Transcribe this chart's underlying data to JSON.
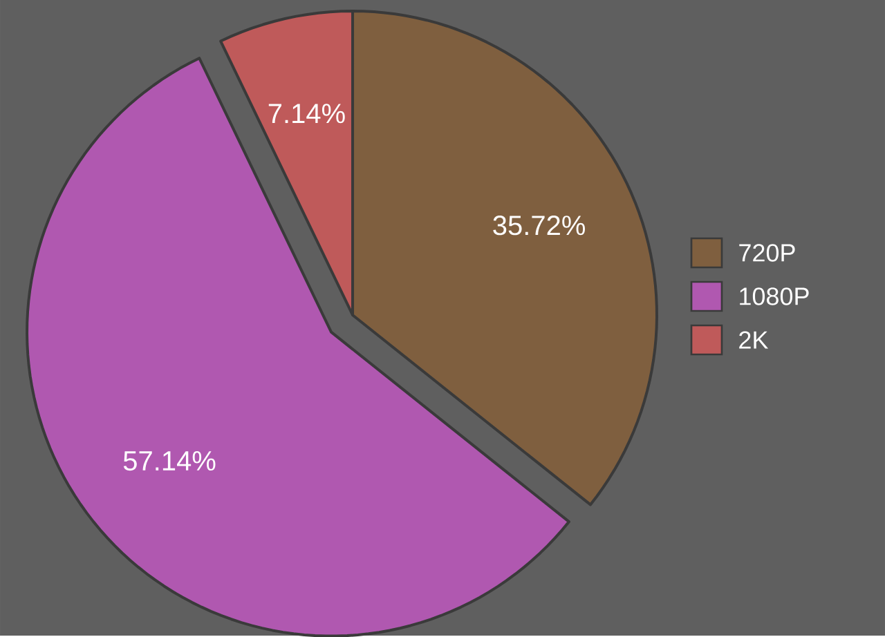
{
  "chart_data": {
    "type": "pie",
    "categories": [
      "720P",
      "1080P",
      "2K"
    ],
    "values": [
      35.72,
      57.14,
      7.14
    ],
    "colors": [
      "#7f5f3f",
      "#b058b0",
      "#bf5a5a"
    ],
    "value_labels": [
      "35.72%",
      "57.14%",
      "7.14%"
    ],
    "legend": "right"
  }
}
